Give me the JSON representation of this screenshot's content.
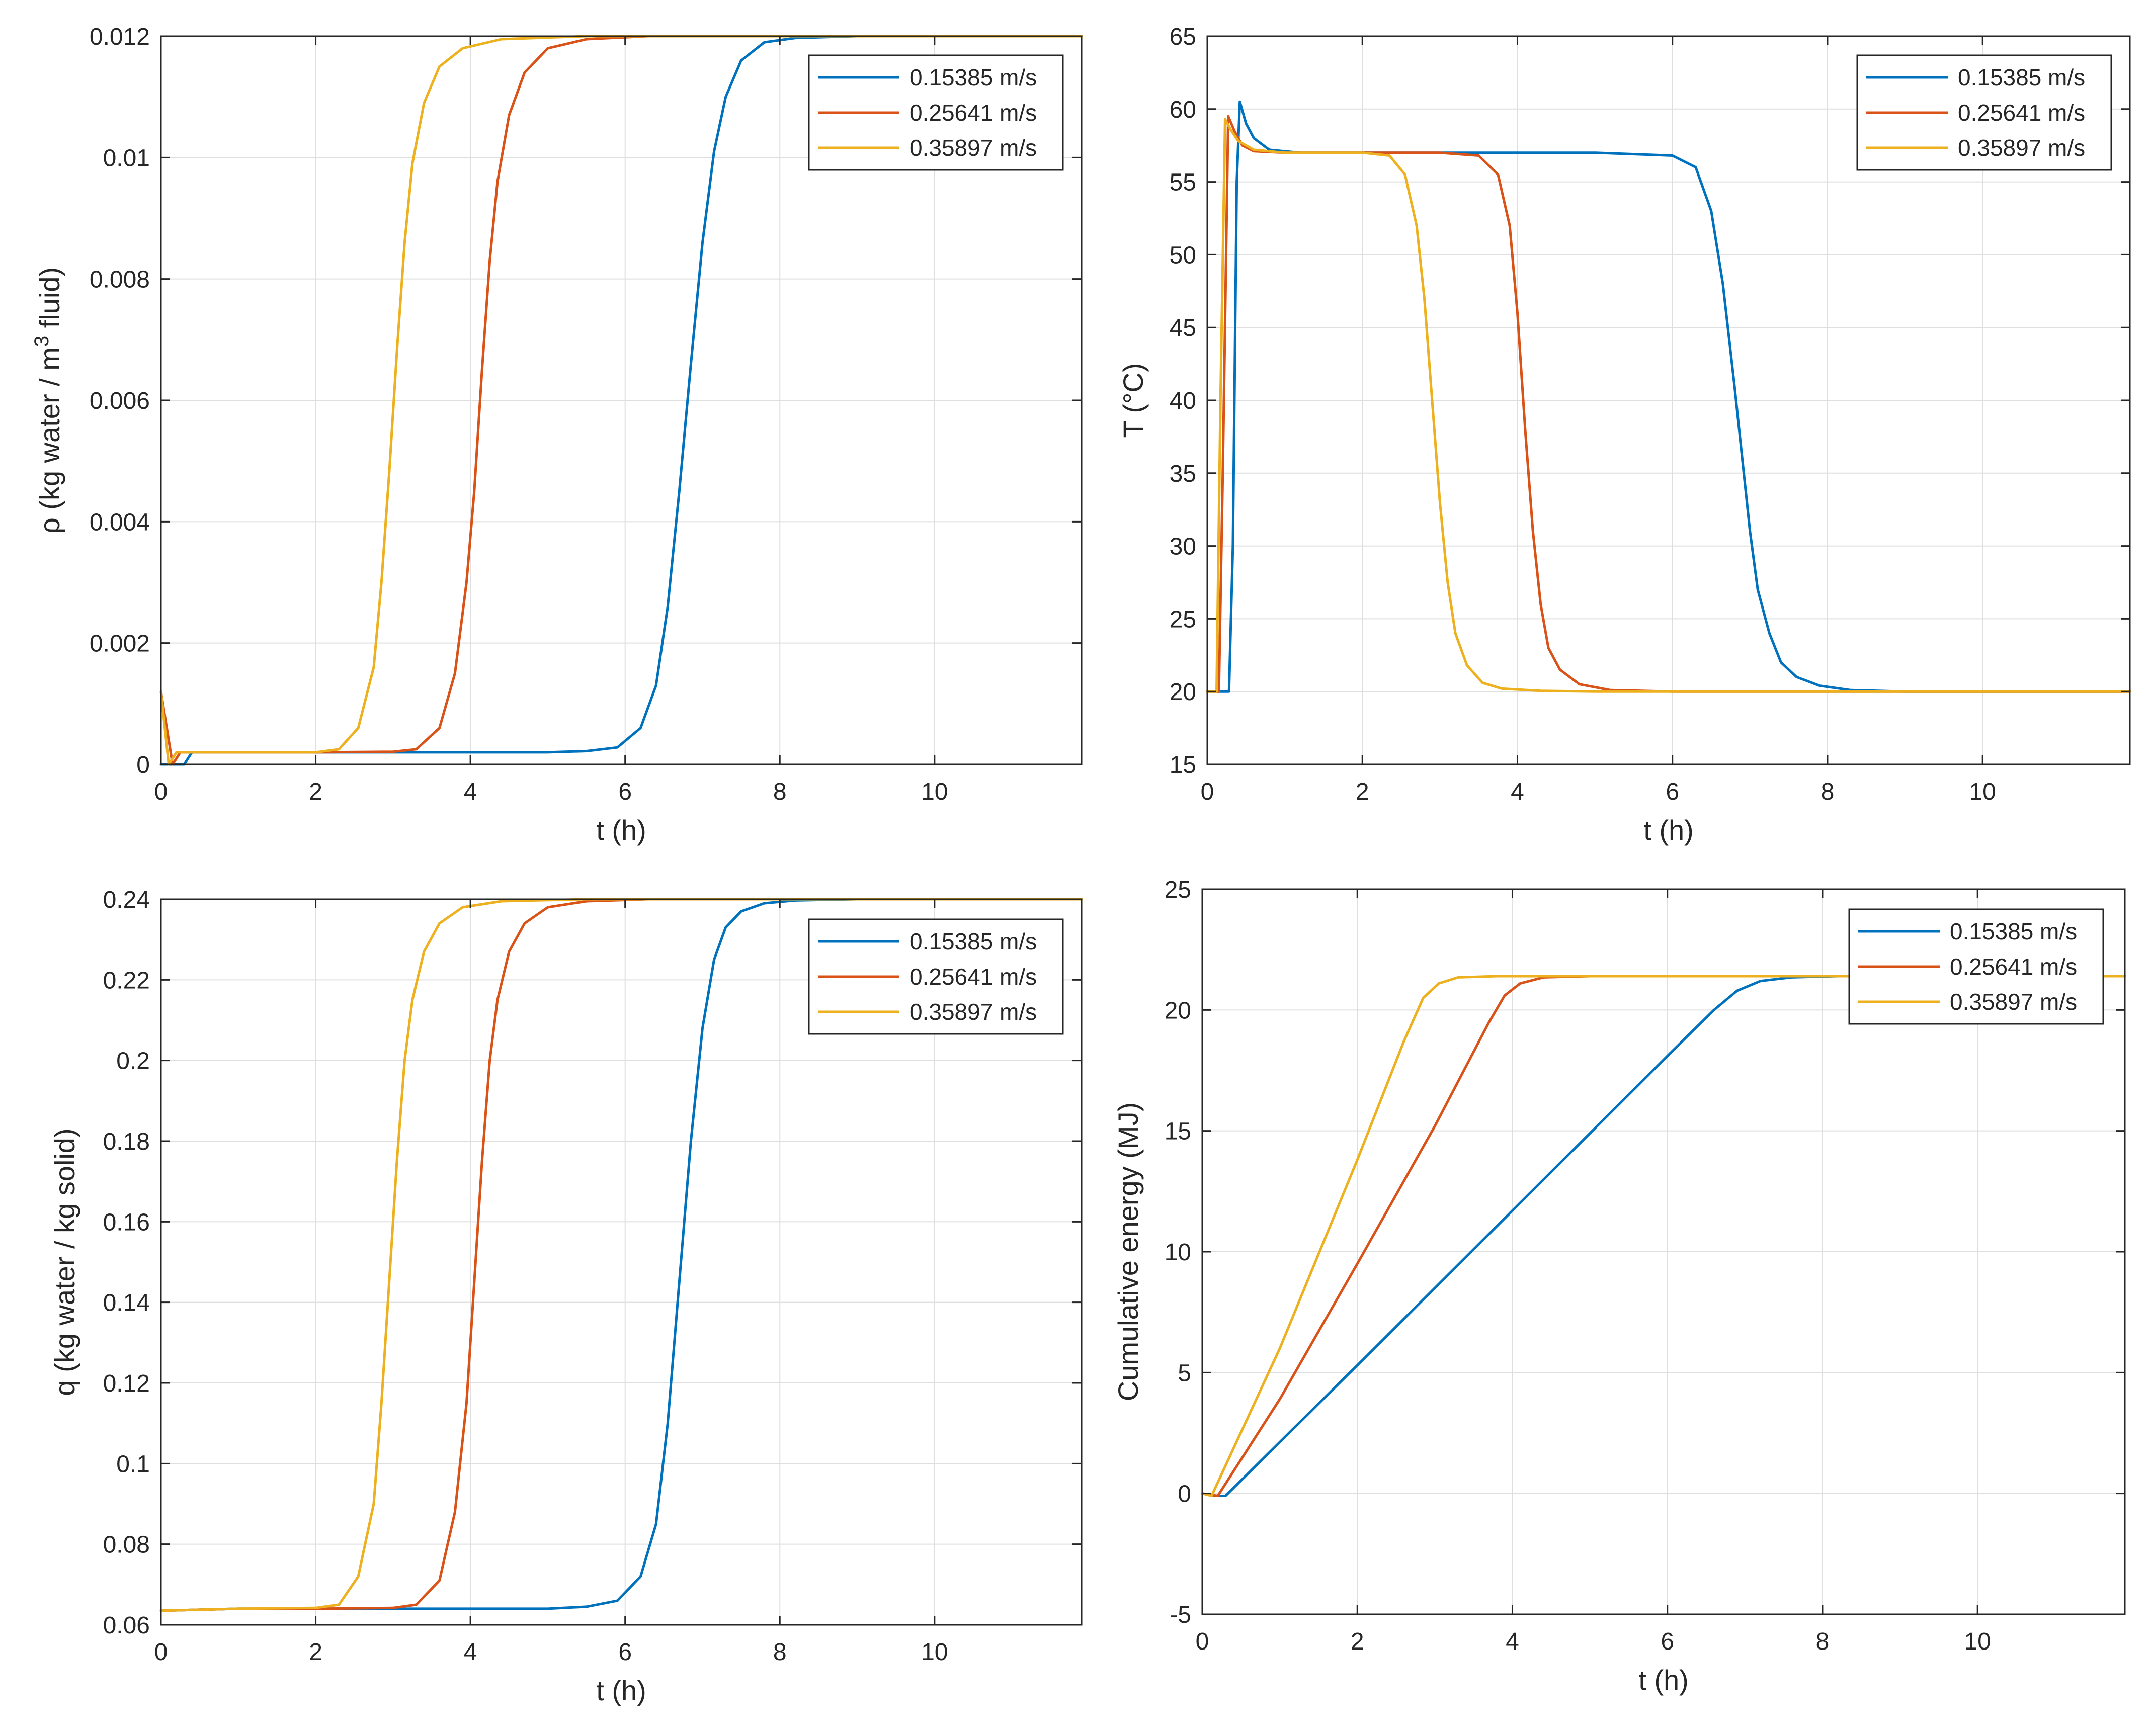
{
  "colors": {
    "series": [
      "#0072BD",
      "#D95319",
      "#EDB120"
    ],
    "grid": "#DFDFDF",
    "axis": "#262626"
  },
  "chart_data": [
    {
      "type": "line",
      "id": "rho",
      "title": "",
      "xlabel": "t (h)",
      "ylabel": {
        "prefix": "ρ (kg water / m",
        "sup": "3",
        "suffix": " fluid)"
      },
      "xlim": [
        0,
        11.9
      ],
      "ylim": [
        0,
        0.012
      ],
      "xticks": [
        0,
        2,
        4,
        6,
        8,
        10
      ],
      "xtick_labels": [
        "0",
        "2",
        "4",
        "6",
        "8",
        "10"
      ],
      "yticks": [
        0,
        0.002,
        0.004,
        0.006,
        0.008,
        0.01,
        0.012
      ],
      "ytick_labels": [
        "0",
        "0.002",
        "0.004",
        "0.006",
        "0.008",
        "0.01",
        "0.012"
      ],
      "grid": true,
      "legend_position": "top-right",
      "series": [
        {
          "name": "0.15385 m/s",
          "x": [
            0,
            0.3,
            0.4,
            1,
            2,
            3,
            4,
            5,
            5.5,
            5.9,
            6.2,
            6.4,
            6.55,
            6.7,
            6.85,
            7.0,
            7.15,
            7.3,
            7.5,
            7.8,
            8.2,
            9,
            11.9
          ],
          "values": [
            0,
            0,
            0.0002,
            0.0002,
            0.0002,
            0.0002,
            0.0002,
            0.0002,
            0.00022,
            0.00028,
            0.0006,
            0.0013,
            0.0026,
            0.0045,
            0.0066,
            0.0086,
            0.0101,
            0.011,
            0.0116,
            0.0119,
            0.01197,
            0.012,
            0.012
          ]
        },
        {
          "name": "0.25641 m/s",
          "x": [
            0,
            0.15,
            0.25,
            1,
            2,
            3,
            3.3,
            3.6,
            3.8,
            3.95,
            4.05,
            4.15,
            4.25,
            4.35,
            4.5,
            4.7,
            5.0,
            5.5,
            6.3,
            11.9
          ],
          "values": [
            0.0012,
            0,
            0.0002,
            0.0002,
            0.0002,
            0.00021,
            0.00025,
            0.0006,
            0.0015,
            0.003,
            0.0045,
            0.0065,
            0.0083,
            0.0096,
            0.0107,
            0.0114,
            0.0118,
            0.01195,
            0.012,
            0.012
          ]
        },
        {
          "name": "0.35897 m/s",
          "x": [
            0,
            0.1,
            0.2,
            1,
            2,
            2.3,
            2.55,
            2.75,
            2.85,
            2.95,
            3.05,
            3.15,
            3.25,
            3.4,
            3.6,
            3.9,
            4.4,
            5.5,
            11.9
          ],
          "values": [
            0.0012,
            0,
            0.0002,
            0.0002,
            0.0002,
            0.00025,
            0.0006,
            0.0016,
            0.003,
            0.0048,
            0.0068,
            0.0086,
            0.0099,
            0.0109,
            0.0115,
            0.0118,
            0.01195,
            0.012,
            0.012
          ]
        }
      ]
    },
    {
      "type": "line",
      "id": "temperature",
      "title": "",
      "xlabel": "t (h)",
      "ylabel": {
        "prefix": "T (°C)",
        "sup": "",
        "suffix": ""
      },
      "xlim": [
        0,
        11.9
      ],
      "ylim": [
        15,
        65
      ],
      "xticks": [
        0,
        2,
        4,
        6,
        8,
        10
      ],
      "xtick_labels": [
        "0",
        "2",
        "4",
        "6",
        "8",
        "10"
      ],
      "yticks": [
        15,
        20,
        25,
        30,
        35,
        40,
        45,
        50,
        55,
        60,
        65
      ],
      "ytick_labels": [
        "15",
        "20",
        "25",
        "30",
        "35",
        "40",
        "45",
        "50",
        "55",
        "60",
        "65"
      ],
      "grid": true,
      "legend_position": "top-right",
      "series": [
        {
          "name": "0.15385 m/s",
          "x": [
            0,
            0.28,
            0.33,
            0.38,
            0.42,
            0.5,
            0.6,
            0.8,
            1.2,
            2,
            3,
            4,
            5,
            6,
            6.3,
            6.5,
            6.65,
            6.8,
            6.9,
            7.0,
            7.1,
            7.25,
            7.4,
            7.6,
            7.9,
            8.3,
            9,
            11.9
          ],
          "values": [
            20,
            20,
            30,
            55,
            60.5,
            59,
            58,
            57.2,
            57,
            57,
            57,
            57,
            57,
            56.8,
            56,
            53,
            48,
            41,
            36,
            31,
            27,
            24,
            22,
            21,
            20.4,
            20.1,
            20,
            20
          ]
        },
        {
          "name": "0.25641 m/s",
          "x": [
            0,
            0.15,
            0.2,
            0.27,
            0.35,
            0.45,
            0.6,
            1,
            2,
            3,
            3.5,
            3.75,
            3.9,
            4.0,
            4.1,
            4.2,
            4.3,
            4.4,
            4.55,
            4.8,
            5.2,
            6,
            11.9
          ],
          "values": [
            20,
            20,
            35,
            59.5,
            58.5,
            57.5,
            57.1,
            57,
            57,
            57,
            56.8,
            55.5,
            52,
            46,
            38,
            31,
            26,
            23,
            21.5,
            20.5,
            20.1,
            20,
            20
          ]
        },
        {
          "name": "0.35897 m/s",
          "x": [
            0,
            0.12,
            0.17,
            0.23,
            0.3,
            0.4,
            0.6,
            1,
            2,
            2.35,
            2.55,
            2.7,
            2.8,
            2.9,
            3.0,
            3.1,
            3.2,
            3.35,
            3.55,
            3.8,
            4.3,
            5,
            11.9
          ],
          "values": [
            20,
            20,
            40,
            59.3,
            58.6,
            57.8,
            57.2,
            57,
            57,
            56.8,
            55.5,
            52,
            47,
            40,
            33,
            27.5,
            24,
            21.8,
            20.6,
            20.2,
            20.05,
            20,
            20
          ]
        }
      ]
    },
    {
      "type": "line",
      "id": "q",
      "title": "",
      "xlabel": "t (h)",
      "ylabel": {
        "prefix": "q (kg water / kg solid)",
        "sup": "",
        "suffix": ""
      },
      "xlim": [
        0,
        11.9
      ],
      "ylim": [
        0.06,
        0.24
      ],
      "xticks": [
        0,
        2,
        4,
        6,
        8,
        10
      ],
      "xtick_labels": [
        "0",
        "2",
        "4",
        "6",
        "8",
        "10"
      ],
      "yticks": [
        0.06,
        0.08,
        0.1,
        0.12,
        0.14,
        0.16,
        0.18,
        0.2,
        0.22,
        0.24
      ],
      "ytick_labels": [
        "0.06",
        "0.08",
        "0.1",
        "0.12",
        "0.14",
        "0.16",
        "0.18",
        "0.2",
        "0.22",
        "0.24"
      ],
      "grid": true,
      "legend_position": "top-right",
      "series": [
        {
          "name": "0.15385 m/s",
          "x": [
            0,
            1,
            2,
            3,
            4,
            5,
            5.5,
            5.9,
            6.2,
            6.4,
            6.55,
            6.7,
            6.85,
            7.0,
            7.15,
            7.3,
            7.5,
            7.8,
            8.2,
            9,
            11.9
          ],
          "values": [
            0.0635,
            0.064,
            0.064,
            0.064,
            0.064,
            0.064,
            0.0645,
            0.066,
            0.072,
            0.085,
            0.11,
            0.145,
            0.18,
            0.208,
            0.225,
            0.233,
            0.237,
            0.239,
            0.2397,
            0.24,
            0.24
          ]
        },
        {
          "name": "0.25641 m/s",
          "x": [
            0,
            1,
            2,
            3,
            3.3,
            3.6,
            3.8,
            3.95,
            4.05,
            4.15,
            4.25,
            4.35,
            4.5,
            4.7,
            5.0,
            5.5,
            6.3,
            11.9
          ],
          "values": [
            0.0635,
            0.064,
            0.064,
            0.0642,
            0.065,
            0.071,
            0.088,
            0.115,
            0.145,
            0.175,
            0.2,
            0.215,
            0.227,
            0.234,
            0.238,
            0.2395,
            0.24,
            0.24
          ]
        },
        {
          "name": "0.35897 m/s",
          "x": [
            0,
            1,
            2,
            2.3,
            2.55,
            2.75,
            2.85,
            2.95,
            3.05,
            3.15,
            3.25,
            3.4,
            3.6,
            3.9,
            4.4,
            5.5,
            11.9
          ],
          "values": [
            0.0635,
            0.064,
            0.0642,
            0.065,
            0.072,
            0.09,
            0.115,
            0.145,
            0.175,
            0.2,
            0.215,
            0.227,
            0.234,
            0.238,
            0.2395,
            0.24,
            0.24
          ]
        }
      ]
    },
    {
      "type": "line",
      "id": "energy",
      "title": "",
      "xlabel": "t (h)",
      "ylabel": {
        "prefix": "Cumulative energy (MJ)",
        "sup": "",
        "suffix": ""
      },
      "xlim": [
        0,
        11.9
      ],
      "ylim": [
        -5,
        25
      ],
      "xticks": [
        0,
        2,
        4,
        6,
        8,
        10
      ],
      "xtick_labels": [
        "0",
        "2",
        "4",
        "6",
        "8",
        "10"
      ],
      "yticks": [
        -5,
        0,
        5,
        10,
        15,
        20,
        25
      ],
      "ytick_labels": [
        "-5",
        "0",
        "5",
        "10",
        "15",
        "20",
        "25"
      ],
      "grid": true,
      "legend_position": "top-right",
      "series": [
        {
          "name": "0.15385 m/s",
          "x": [
            0,
            0.15,
            0.3,
            2,
            4,
            6,
            6.6,
            6.9,
            7.2,
            7.6,
            8.2,
            11.9
          ],
          "values": [
            0,
            -0.1,
            -0.1,
            5.3,
            11.7,
            18.1,
            20.0,
            20.8,
            21.2,
            21.35,
            21.4,
            21.4
          ]
        },
        {
          "name": "0.25641 m/s",
          "x": [
            0,
            0.2,
            1,
            2,
            3,
            3.7,
            3.9,
            4.1,
            4.4,
            5,
            11.9
          ],
          "values": [
            0,
            -0.1,
            3.9,
            9.5,
            15.2,
            19.5,
            20.6,
            21.1,
            21.35,
            21.4,
            21.4
          ]
        },
        {
          "name": "0.35897 m/s",
          "x": [
            0,
            0.12,
            1,
            2,
            2.6,
            2.85,
            3.05,
            3.3,
            3.8,
            11.9
          ],
          "values": [
            0,
            -0.1,
            6.0,
            13.8,
            18.7,
            20.5,
            21.1,
            21.35,
            21.4,
            21.4
          ]
        }
      ]
    }
  ]
}
